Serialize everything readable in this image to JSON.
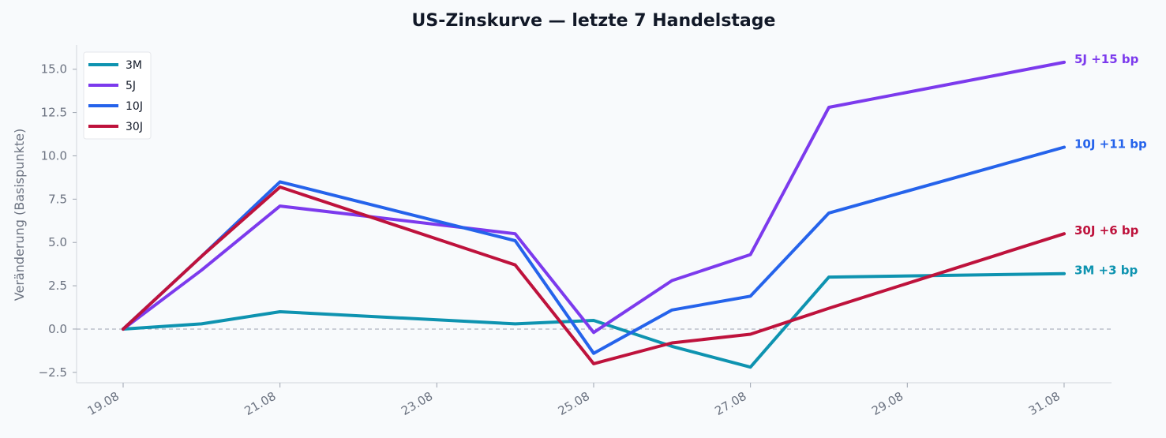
{
  "chart_data": {
    "type": "line",
    "title": "US-Zinskurve — letzte 7 Handelstage",
    "xlabel": "",
    "ylabel": "Veränderung (Basispunkte)",
    "x_ticks": [
      "19.08",
      "21.08",
      "23.08",
      "25.08",
      "27.08",
      "29.08",
      "31.08"
    ],
    "x": [
      "2024-08-19",
      "2024-08-20",
      "2024-08-21",
      "2024-08-24",
      "2024-08-25",
      "2024-08-26",
      "2024-08-27",
      "2024-08-28",
      "2024-08-31"
    ],
    "ylim": [
      -3.1,
      16.4
    ],
    "y_ticks": [
      "−2.5",
      "0.0",
      "2.5",
      "5.0",
      "7.5",
      "10.0",
      "12.5",
      "15.0"
    ],
    "grid": false,
    "baseline": 0,
    "legend_position": "top-left",
    "series": [
      {
        "name": "3M",
        "color": "#0e93b0",
        "values": [
          0,
          0.3,
          1.0,
          0.3,
          0.5,
          -1.0,
          -2.2,
          3.0,
          3.2
        ],
        "end_label": "3M +3 bp"
      },
      {
        "name": "5J",
        "color": "#7c3aed",
        "values": [
          0,
          3.4,
          7.1,
          5.5,
          -0.2,
          2.8,
          4.3,
          12.8,
          15.4
        ],
        "end_label": "5J +15 bp"
      },
      {
        "name": "10J",
        "color": "#2563eb",
        "values": [
          0,
          4.2,
          8.5,
          5.1,
          -1.4,
          1.1,
          1.9,
          6.7,
          10.5
        ],
        "end_label": "10J +11 bp"
      },
      {
        "name": "30J",
        "color": "#be123c",
        "values": [
          0,
          4.2,
          8.2,
          3.7,
          -2.0,
          -0.8,
          -0.3,
          1.2,
          5.5
        ],
        "end_label": "30J +6 bp"
      }
    ]
  }
}
